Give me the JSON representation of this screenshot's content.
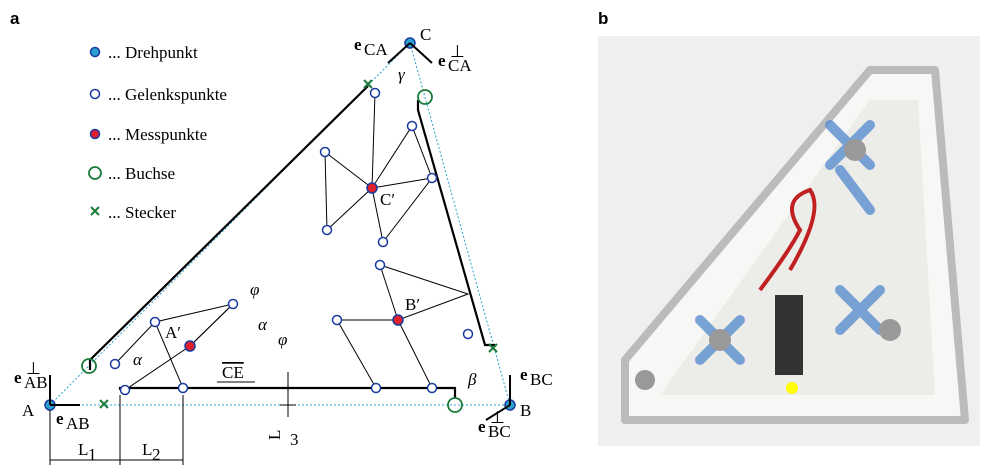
{
  "panel_labels": [
    "a",
    "b"
  ],
  "legend": [
    "... Drehpunkt",
    "... Gelenkspunkte",
    "... Messpunkte",
    "... Buchse",
    "... Stecker"
  ],
  "points": [
    "A",
    "B",
    "C",
    "A′",
    "B′",
    "C′"
  ],
  "vectors": [
    {
      "base": "e",
      "sub": "CA"
    },
    {
      "base": "e",
      "sub": "CA",
      "sup": "⊥"
    },
    {
      "base": "e",
      "sub": "AB",
      "sup": "⊥"
    },
    {
      "base": "e",
      "sub": "AB"
    },
    {
      "base": "e",
      "sub": "BC"
    },
    {
      "base": "e",
      "sub": "BC",
      "sup": "⊥"
    }
  ],
  "dimensions": [
    {
      "base": "L",
      "sub": "1"
    },
    {
      "base": "L",
      "sub": "2"
    },
    {
      "base": "L",
      "sub": "3"
    },
    {
      "base": "CE"
    }
  ],
  "angles": [
    "γ",
    "β",
    "α",
    "α",
    "φ",
    "φ"
  ]
}
